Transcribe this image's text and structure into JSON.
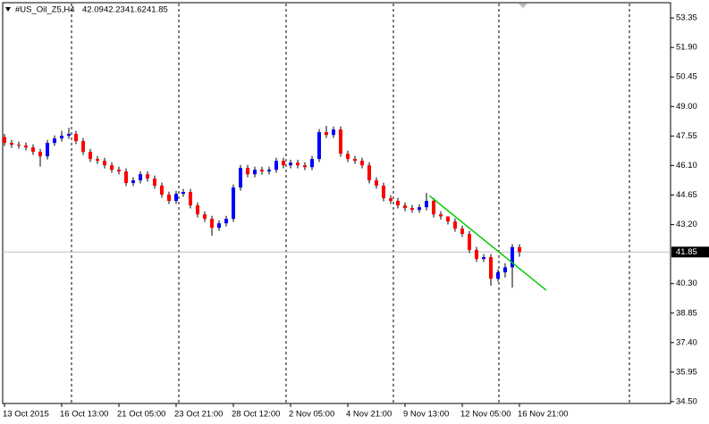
{
  "chart_data": {
    "type": "candlestick",
    "title": "#US_Oil_Z5,H4",
    "header_values": [
      42.09,
      42.23,
      41.62,
      41.85
    ],
    "categories": [
      "13 Oct 2015",
      null,
      null,
      null,
      null,
      null,
      null,
      null,
      "16 Oct 13:00",
      null,
      null,
      null,
      null,
      null,
      null,
      null,
      "21 Oct 05:00",
      null,
      null,
      null,
      null,
      null,
      null,
      null,
      "23 Oct 21:00",
      null,
      null,
      null,
      null,
      null,
      null,
      null,
      "28 Oct 12:00",
      null,
      null,
      null,
      null,
      null,
      null,
      null,
      "2 Nov 05:00",
      null,
      null,
      null,
      null,
      null,
      null,
      null,
      "4 Nov 21:00",
      null,
      null,
      null,
      null,
      null,
      null,
      null,
      "9 Nov 13:00",
      null,
      null,
      null,
      null,
      null,
      null,
      null,
      "12 Nov 05:00",
      null,
      null,
      null,
      null,
      null,
      null,
      null,
      "16 Nov 21:00"
    ],
    "open": [
      47.5,
      47.21,
      47.12,
      47.08,
      46.99,
      46.77,
      46.55,
      47.21,
      47.43,
      47.56,
      47.65,
      47.3,
      46.77,
      46.42,
      46.33,
      46.11,
      45.89,
      45.81,
      45.24,
      45.37,
      45.67,
      45.46,
      45.11,
      44.67,
      44.36,
      44.71,
      44.8,
      44.14,
      43.7,
      43.48,
      43.04,
      43.26,
      43.48,
      45.02,
      45.98,
      45.67,
      45.89,
      45.81,
      45.89,
      46.33,
      46.11,
      46.24,
      46.11,
      46.02,
      46.42,
      47.74,
      47.6,
      47.87,
      46.68,
      46.42,
      46.33,
      46.11,
      45.37,
      45.11,
      44.49,
      44.36,
      44.14,
      44.01,
      43.92,
      44.05,
      44.36,
      43.7,
      43.6,
      43.35,
      43.0,
      42.74,
      41.95,
      41.51,
      41.6,
      40.54,
      40.85,
      41.1,
      42.09
    ],
    "high": [
      47.65,
      47.36,
      47.27,
      47.23,
      47.14,
      46.92,
      47.36,
      47.58,
      47.8,
      47.95,
      47.8,
      47.45,
      46.92,
      46.57,
      46.48,
      46.26,
      46.04,
      45.96,
      45.52,
      45.82,
      45.82,
      45.61,
      45.26,
      44.82,
      44.86,
      44.95,
      44.95,
      44.29,
      43.85,
      43.63,
      43.41,
      43.63,
      45.17,
      46.13,
      46.13,
      46.04,
      46.04,
      46.04,
      46.48,
      46.48,
      46.39,
      46.39,
      46.26,
      46.57,
      47.89,
      48.05,
      48.02,
      48.02,
      46.83,
      46.57,
      46.48,
      46.26,
      45.52,
      45.26,
      44.64,
      44.51,
      44.29,
      44.16,
      44.2,
      44.75,
      44.51,
      43.85,
      43.5,
      43.5,
      43.15,
      42.89,
      42.1,
      41.75,
      41.75,
      41.0,
      41.3,
      42.24,
      42.23
    ],
    "low": [
      47.06,
      46.97,
      46.93,
      46.84,
      46.62,
      46.05,
      46.4,
      47.06,
      47.28,
      47.41,
      47.15,
      46.62,
      46.27,
      46.18,
      45.96,
      45.74,
      45.66,
      45.09,
      45.09,
      45.22,
      45.31,
      44.96,
      44.52,
      44.21,
      44.21,
      44.56,
      43.99,
      43.55,
      43.33,
      42.65,
      42.89,
      43.11,
      43.33,
      44.87,
      45.52,
      45.52,
      45.66,
      45.66,
      45.74,
      45.96,
      45.96,
      45.96,
      45.87,
      45.87,
      46.27,
      47.45,
      47.45,
      46.53,
      46.27,
      46.18,
      45.96,
      45.22,
      44.96,
      44.34,
      44.21,
      43.99,
      43.86,
      43.77,
      43.77,
      43.9,
      43.55,
      43.45,
      43.2,
      42.85,
      42.59,
      41.8,
      41.36,
      41.36,
      40.2,
      40.39,
      40.6,
      40.1,
      41.62
    ],
    "close": [
      47.21,
      47.12,
      47.08,
      46.99,
      46.77,
      46.55,
      47.21,
      47.43,
      47.56,
      47.65,
      47.3,
      46.77,
      46.42,
      46.33,
      46.11,
      45.89,
      45.81,
      45.24,
      45.37,
      45.67,
      45.46,
      45.11,
      44.67,
      44.36,
      44.71,
      44.8,
      44.14,
      43.7,
      43.48,
      43.04,
      43.26,
      43.48,
      45.02,
      45.98,
      45.67,
      45.89,
      45.81,
      45.89,
      46.33,
      46.11,
      46.24,
      46.11,
      46.02,
      46.42,
      47.74,
      47.6,
      47.87,
      46.68,
      46.42,
      46.33,
      46.11,
      45.37,
      45.11,
      44.49,
      44.36,
      44.14,
      44.01,
      43.92,
      44.05,
      44.36,
      43.7,
      43.6,
      43.35,
      43.0,
      42.74,
      41.95,
      41.51,
      41.6,
      40.54,
      40.85,
      41.1,
      42.09,
      41.85
    ],
    "up_color": "#0000ff",
    "down_color": "#ff0000",
    "wick_color": "#000000",
    "current_price": 41.85,
    "ylim": [
      34.41,
      54.1
    ],
    "yticks": [
      53.35,
      {
        "value": 51.9,
        "label": "51.90"
      },
      50.45,
      {
        "value": 49,
        "label": "49.00"
      },
      47.55,
      {
        "value": 46.1,
        "label": "46.10"
      },
      44.65,
      {
        "value": 43.2,
        "label": "43.20"
      },
      {
        "value": 40.3,
        "label": "40.30"
      },
      38.85,
      {
        "value": 37.4,
        "label": "37.40"
      },
      35.95,
      {
        "value": 34.5,
        "label": "34.50"
      }
    ],
    "trendline": {
      "x": [
        59.4,
        75.75
      ],
      "y": [
        44.62,
        39.97
      ],
      "color": "#00cc00"
    }
  }
}
